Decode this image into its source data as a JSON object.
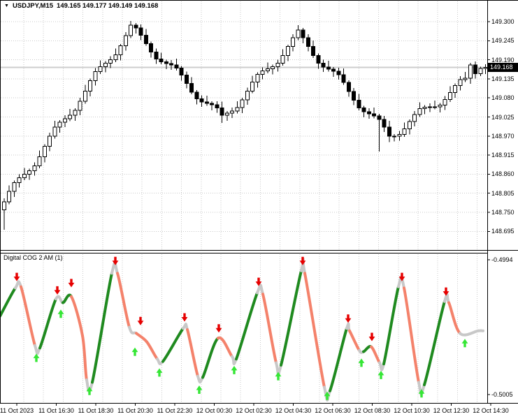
{
  "window": {
    "symbol_title": "USDJPY,M15",
    "ohlc_readout": "149.165 149.177 149.149 149.168",
    "dropdown_glyph": "▼"
  },
  "colors": {
    "background": "#ffffff",
    "text": "#000000",
    "grid": "#c9c9c9",
    "panel_border": "#000000",
    "candle_outline": "#000000",
    "bull_fill": "#ffffff",
    "bear_fill": "#000000",
    "current_price_line": "#cccccc",
    "price_tag_bg": "#000000",
    "price_tag_text": "#ffffff",
    "osc_up": "#1f8a1f",
    "osc_down": "#f4826b",
    "osc_neutral": "#c8c8c8",
    "arrow_sell": "#e60000",
    "arrow_buy": "#35e635"
  },
  "time_axis": {
    "labels": [
      "11 Oct 2023",
      "11 Oct 16:30",
      "11 Oct 18:30",
      "11 Oct 20:30",
      "11 Oct 22:30",
      "12 Oct 00:30",
      "12 Oct 02:30",
      "12 Oct 04:30",
      "12 Oct 06:30",
      "12 Oct 08:30",
      "12 Oct 10:30",
      "12 Oct 12:30",
      "12 Oct 14:30"
    ]
  },
  "chart_data": [
    {
      "type": "candlestick",
      "title": "USDJPY,M15",
      "last_bar_ohlc": {
        "open": 149.165,
        "high": 149.177,
        "low": 149.149,
        "close": 149.168
      },
      "current_price": 149.168,
      "current_price_label": "149.168",
      "y_axis": {
        "tick_labels": [
          "149.300",
          "149.245",
          "149.190",
          "149.135",
          "149.080",
          "149.025",
          "148.970",
          "148.915",
          "148.860",
          "148.805",
          "148.750",
          "148.695"
        ],
        "tick_values": [
          149.3,
          149.245,
          149.19,
          149.135,
          149.08,
          149.025,
          148.97,
          148.915,
          148.86,
          148.805,
          148.75,
          148.695
        ],
        "grid": true
      },
      "candles": [
        [
          148.757,
          148.79,
          148.7,
          148.78
        ],
        [
          148.78,
          148.828,
          148.773,
          148.81
        ],
        [
          148.81,
          148.842,
          148.794,
          148.836
        ],
        [
          148.836,
          148.86,
          148.822,
          148.85
        ],
        [
          148.85,
          148.878,
          148.843,
          148.86
        ],
        [
          148.86,
          148.876,
          148.844,
          148.87
        ],
        [
          148.87,
          148.894,
          148.856,
          148.884
        ],
        [
          148.884,
          148.928,
          148.877,
          148.91
        ],
        [
          148.91,
          148.946,
          148.894,
          148.94
        ],
        [
          148.94,
          148.98,
          148.926,
          148.97
        ],
        [
          148.97,
          149.014,
          148.963,
          148.996
        ],
        [
          148.996,
          149.016,
          148.98,
          149.01
        ],
        [
          149.01,
          149.03,
          148.996,
          149.02
        ],
        [
          149.02,
          149.048,
          149.013,
          149.03
        ],
        [
          149.03,
          149.05,
          149.014,
          149.044
        ],
        [
          149.044,
          149.08,
          149.03,
          149.07
        ],
        [
          149.07,
          149.118,
          149.063,
          149.1
        ],
        [
          149.1,
          149.136,
          149.084,
          149.13
        ],
        [
          149.13,
          149.166,
          149.116,
          149.156
        ],
        [
          149.156,
          149.188,
          149.149,
          149.17
        ],
        [
          149.17,
          149.186,
          149.154,
          149.18
        ],
        [
          149.18,
          149.2,
          149.166,
          149.19
        ],
        [
          149.19,
          149.222,
          149.183,
          149.204
        ],
        [
          149.204,
          149.236,
          149.188,
          149.23
        ],
        [
          149.23,
          149.27,
          149.216,
          149.26
        ],
        [
          149.26,
          149.302,
          149.253,
          149.29
        ],
        [
          149.29,
          149.296,
          149.266,
          149.282
        ],
        [
          149.282,
          149.292,
          149.247,
          149.261
        ],
        [
          149.261,
          149.279,
          149.23,
          149.237
        ],
        [
          149.237,
          149.243,
          149.196,
          149.212
        ],
        [
          149.212,
          149.222,
          149.178,
          149.192
        ],
        [
          149.192,
          149.21,
          149.177,
          149.184
        ],
        [
          149.184,
          149.19,
          149.163,
          149.179
        ],
        [
          149.179,
          149.189,
          149.161,
          149.175
        ],
        [
          149.175,
          149.193,
          149.159,
          149.166
        ],
        [
          149.166,
          149.172,
          149.13,
          149.146
        ],
        [
          149.146,
          149.156,
          149.108,
          149.122
        ],
        [
          149.122,
          149.14,
          149.09,
          149.097
        ],
        [
          149.097,
          149.103,
          149.061,
          149.077
        ],
        [
          149.077,
          149.087,
          149.054,
          149.068
        ],
        [
          149.068,
          149.086,
          149.057,
          149.064
        ],
        [
          149.064,
          149.07,
          149.044,
          149.06
        ],
        [
          149.06,
          149.07,
          149.037,
          149.051
        ],
        [
          149.051,
          149.069,
          149.008,
          149.03
        ],
        [
          149.03,
          149.042,
          149.014,
          149.036
        ],
        [
          149.036,
          149.052,
          149.022,
          149.042
        ],
        [
          149.042,
          149.07,
          149.035,
          149.052
        ],
        [
          149.052,
          149.08,
          149.036,
          149.074
        ],
        [
          149.074,
          149.11,
          149.06,
          149.1
        ],
        [
          149.1,
          149.144,
          149.093,
          149.126
        ],
        [
          149.126,
          149.154,
          149.11,
          149.148
        ],
        [
          149.148,
          149.168,
          149.134,
          149.158
        ],
        [
          149.158,
          149.182,
          149.151,
          149.164
        ],
        [
          149.164,
          149.176,
          149.148,
          149.17
        ],
        [
          149.17,
          149.19,
          149.156,
          149.18
        ],
        [
          149.18,
          149.22,
          149.173,
          149.202
        ],
        [
          149.202,
          149.234,
          149.186,
          149.228
        ],
        [
          149.228,
          149.264,
          149.214,
          149.254
        ],
        [
          149.254,
          149.29,
          149.247,
          149.276
        ],
        [
          149.276,
          149.282,
          149.238,
          149.254
        ],
        [
          149.254,
          149.264,
          149.214,
          149.228
        ],
        [
          149.228,
          149.246,
          149.195,
          149.202
        ],
        [
          149.202,
          149.208,
          149.164,
          149.18
        ],
        [
          149.18,
          149.19,
          149.155,
          149.169
        ],
        [
          149.169,
          149.187,
          149.156,
          149.163
        ],
        [
          149.163,
          149.169,
          149.141,
          149.157
        ],
        [
          149.157,
          149.167,
          149.133,
          149.147
        ],
        [
          149.147,
          149.165,
          149.118,
          149.125
        ],
        [
          149.125,
          149.131,
          149.083,
          149.099
        ],
        [
          149.099,
          149.109,
          149.059,
          149.073
        ],
        [
          149.073,
          149.091,
          149.044,
          149.051
        ],
        [
          149.051,
          149.057,
          149.024,
          149.04
        ],
        [
          149.04,
          149.05,
          149.02,
          149.034
        ],
        [
          149.034,
          149.052,
          149.021,
          149.028
        ],
        [
          149.028,
          149.034,
          148.925,
          149.018
        ],
        [
          149.018,
          149.028,
          148.982,
          148.996
        ],
        [
          148.996,
          149.014,
          148.952,
          148.97
        ],
        [
          148.97,
          148.976,
          148.954,
          148.97
        ],
        [
          148.97,
          148.985,
          148.956,
          148.975
        ],
        [
          148.975,
          149.009,
          148.968,
          148.991
        ],
        [
          148.991,
          149.018,
          148.975,
          149.012
        ],
        [
          149.012,
          149.042,
          148.998,
          149.032
        ],
        [
          149.032,
          149.067,
          149.025,
          149.049
        ],
        [
          149.049,
          149.059,
          149.033,
          149.053
        ],
        [
          149.053,
          149.064,
          149.039,
          149.054
        ],
        [
          149.054,
          149.072,
          149.047,
          149.054
        ],
        [
          149.054,
          149.065,
          149.038,
          149.059
        ],
        [
          149.059,
          149.085,
          149.045,
          149.075
        ],
        [
          149.075,
          149.114,
          149.068,
          149.096
        ],
        [
          149.096,
          149.122,
          149.08,
          149.116
        ],
        [
          149.116,
          149.143,
          149.102,
          149.133
        ],
        [
          149.133,
          149.155,
          149.126,
          149.137
        ],
        [
          149.137,
          149.181,
          149.121,
          149.175
        ],
        [
          149.175,
          149.185,
          149.136,
          149.15
        ],
        [
          149.15,
          149.17,
          149.143,
          149.165
        ],
        [
          149.165,
          149.177,
          149.149,
          149.168
        ]
      ]
    },
    {
      "type": "line-oscillator",
      "title": "Digital COG 2 AM (1)",
      "y_axis": {
        "tick_labels": [
          "-0.4994",
          "-0.5005"
        ],
        "tick_values": [
          -0.4994,
          -0.5005
        ]
      },
      "points": [
        [
          0,
          -0.49986,
          "green"
        ],
        [
          22,
          -0.49963,
          "green"
        ],
        [
          30,
          -0.49962,
          "gray"
        ],
        [
          50,
          -0.5001,
          "salmon"
        ],
        [
          57,
          -0.50012,
          "gray"
        ],
        [
          80,
          -0.49972,
          "green"
        ],
        [
          90,
          -0.49975,
          "gray"
        ],
        [
          102,
          -0.4997,
          "green"
        ],
        [
          118,
          -0.50002,
          "salmon"
        ],
        [
          124,
          -0.50038,
          "salmon"
        ],
        [
          132,
          -0.5004,
          "gray"
        ],
        [
          160,
          -0.49951,
          "green"
        ],
        [
          168,
          -0.49951,
          "gray"
        ],
        [
          185,
          -0.49995,
          "salmon"
        ],
        [
          195,
          -0.5,
          "gray"
        ],
        [
          210,
          -0.50007,
          "salmon"
        ],
        [
          225,
          -0.50021,
          "salmon"
        ],
        [
          233,
          -0.50023,
          "gray"
        ],
        [
          262,
          -0.49996,
          "green"
        ],
        [
          268,
          -0.49997,
          "gray"
        ],
        [
          283,
          -0.50035,
          "salmon"
        ],
        [
          290,
          -0.50036,
          "gray"
        ],
        [
          312,
          -0.50004,
          "green"
        ],
        [
          332,
          -0.50019,
          "salmon"
        ],
        [
          338,
          -0.50021,
          "gray"
        ],
        [
          368,
          -0.49967,
          "green"
        ],
        [
          376,
          -0.49968,
          "gray"
        ],
        [
          395,
          -0.50024,
          "salmon"
        ],
        [
          402,
          -0.50026,
          "gray"
        ],
        [
          431,
          -0.49949,
          "green"
        ],
        [
          436,
          -0.49951,
          "gray"
        ],
        [
          464,
          -0.50044,
          "salmon"
        ],
        [
          472,
          -0.50047,
          "gray"
        ],
        [
          496,
          -0.49996,
          "green"
        ],
        [
          500,
          -0.49998,
          "gray"
        ],
        [
          514,
          -0.50014,
          "salmon"
        ],
        [
          520,
          -0.50015,
          "gray"
        ],
        [
          531,
          -0.50011,
          "green"
        ],
        [
          543,
          -0.50024,
          "salmon"
        ],
        [
          549,
          -0.50025,
          "gray"
        ],
        [
          570,
          -0.49962,
          "green"
        ],
        [
          578,
          -0.49963,
          "gray"
        ],
        [
          599,
          -0.5004,
          "salmon"
        ],
        [
          607,
          -0.50042,
          "gray"
        ],
        [
          636,
          -0.49974,
          "green"
        ],
        [
          642,
          -0.49975,
          "gray"
        ],
        [
          658,
          -0.5,
          "salmon"
        ],
        [
          684,
          -0.49998,
          "gray"
        ],
        [
          691,
          -0.49998,
          "gray"
        ]
      ],
      "sell_arrows": [
        [
          24,
          -0.49954
        ],
        [
          82,
          -0.49965
        ],
        [
          102,
          -0.49959
        ],
        [
          165,
          -0.49941
        ],
        [
          201,
          -0.4999
        ],
        [
          264,
          -0.49987
        ],
        [
          313,
          -0.49996
        ],
        [
          370,
          -0.49958
        ],
        [
          433,
          -0.49941
        ],
        [
          498,
          -0.49988
        ],
        [
          532,
          -0.50003
        ],
        [
          575,
          -0.49954
        ],
        [
          638,
          -0.49966
        ]
      ],
      "buy_arrows": [
        [
          52,
          -0.5002
        ],
        [
          87,
          -0.49984
        ],
        [
          128,
          -0.50047
        ],
        [
          193,
          -0.50015
        ],
        [
          228,
          -0.50032
        ],
        [
          285,
          -0.50046
        ],
        [
          335,
          -0.5003
        ],
        [
          398,
          -0.50035
        ],
        [
          468,
          -0.50051
        ],
        [
          517,
          -0.50024
        ],
        [
          545,
          -0.50034
        ],
        [
          603,
          -0.50049
        ],
        [
          665,
          -0.50008
        ]
      ]
    }
  ]
}
